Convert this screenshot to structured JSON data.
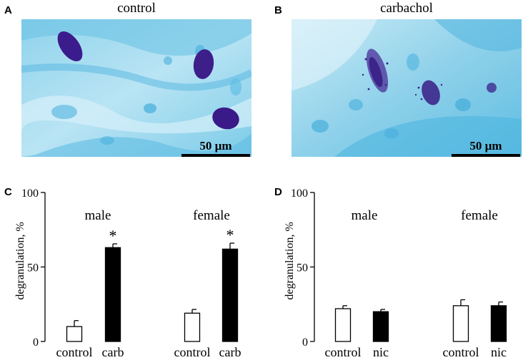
{
  "panels": {
    "A": {
      "letter": "A",
      "title": "control",
      "scale_bar": "50 µm"
    },
    "B": {
      "letter": "B",
      "title": "carbachol",
      "scale_bar": "50 µm"
    },
    "C": {
      "letter": "C"
    },
    "D": {
      "letter": "D"
    }
  },
  "colors": {
    "tissue": "#5dbde0",
    "tissue_light": "#bfe7f5",
    "cell": "#3d1f8a",
    "bar_fill": "#000000",
    "bar_open": "#ffffff"
  },
  "chart_data": [
    {
      "panel": "C",
      "type": "bar",
      "ylabel": "degranulation, %",
      "ylim": [
        0,
        100
      ],
      "yticks": [
        0,
        50,
        100
      ],
      "groups": [
        "male",
        "female"
      ],
      "categories": [
        "control",
        "carb",
        "control",
        "carb"
      ],
      "values": [
        10,
        63,
        19,
        62
      ],
      "errors": [
        4,
        2.5,
        2.5,
        4
      ],
      "fill": [
        "open",
        "filled",
        "open",
        "filled"
      ],
      "significant": [
        false,
        true,
        false,
        true
      ],
      "annotation": "*"
    },
    {
      "panel": "D",
      "type": "bar",
      "ylabel": "degranulation, %",
      "ylim": [
        0,
        100
      ],
      "yticks": [
        0,
        50,
        100
      ],
      "groups": [
        "male",
        "female"
      ],
      "categories": [
        "control",
        "nic",
        "control",
        "nic"
      ],
      "values": [
        22,
        20,
        24,
        24
      ],
      "errors": [
        2,
        1.5,
        4,
        2.5
      ],
      "fill": [
        "open",
        "filled",
        "open",
        "filled"
      ],
      "significant": [
        false,
        false,
        false,
        false
      ],
      "annotation": "*"
    }
  ]
}
